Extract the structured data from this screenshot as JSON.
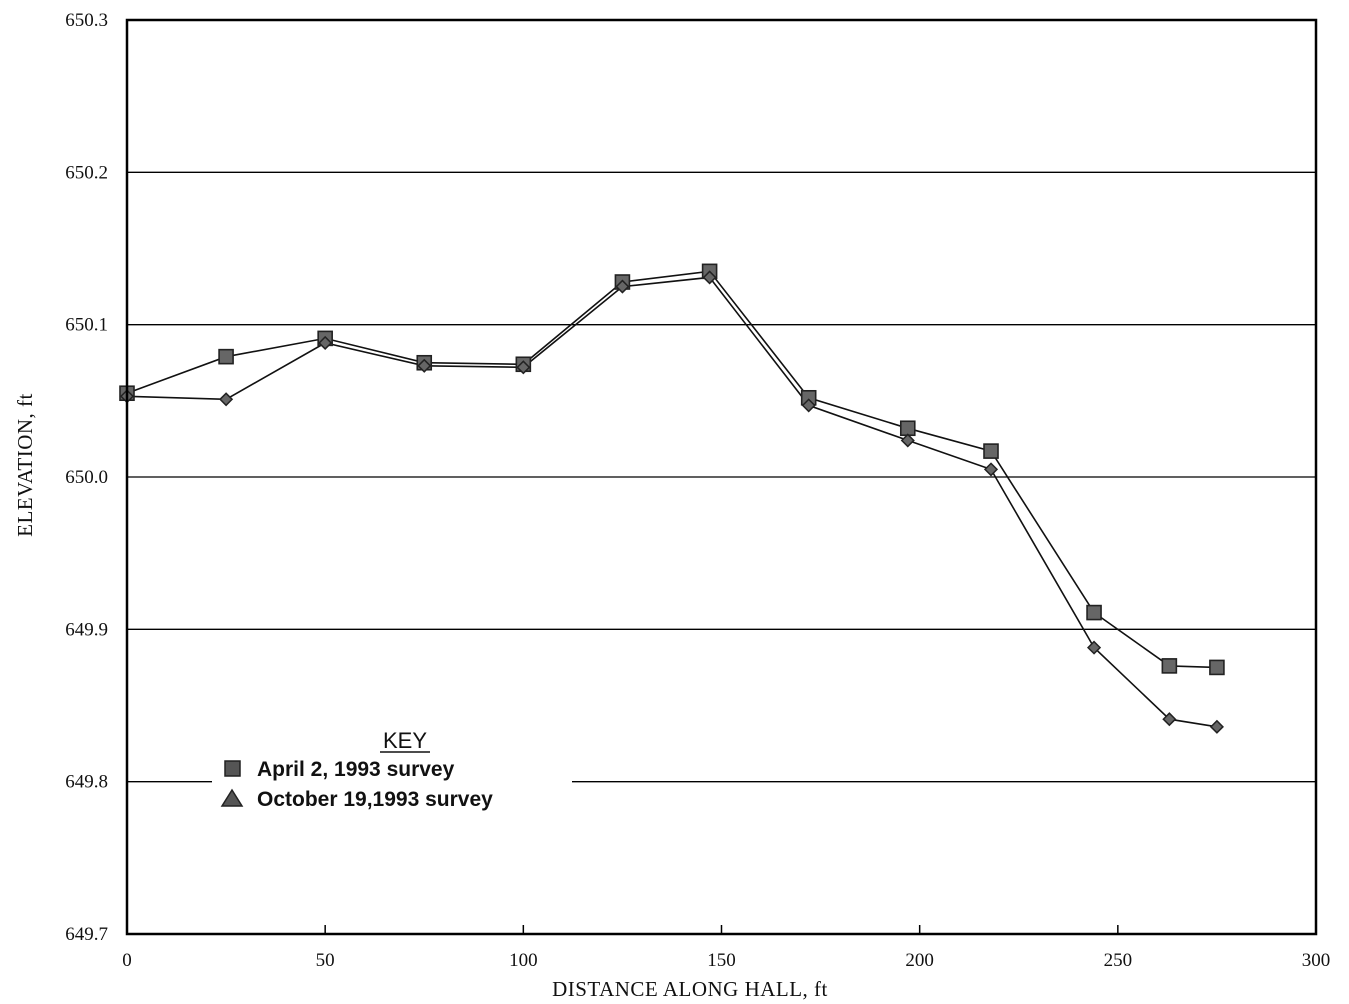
{
  "chart_data": {
    "type": "line",
    "xlabel": "DISTANCE ALONG HALL, ft",
    "ylabel": "ELEVATION, ft",
    "xlim": [
      0,
      300
    ],
    "ylim": [
      649.7,
      650.3
    ],
    "x_ticks": [
      "0",
      "50",
      "100",
      "150",
      "200",
      "250",
      "300"
    ],
    "y_ticks": [
      "650.3",
      "650.2",
      "650.1",
      "650.0",
      "649.9",
      "649.8",
      "649.7"
    ],
    "grid": "horizontal",
    "legend": {
      "title": "KEY",
      "placement": "lower-left",
      "entries": [
        "April 2, 1993 survey",
        "October 19,1993 survey"
      ]
    },
    "series": [
      {
        "name": "April 2, 1993 survey",
        "marker": "square",
        "x": [
          0,
          25,
          50,
          75,
          100,
          125,
          147,
          172,
          197,
          218,
          244,
          263,
          275
        ],
        "y": [
          650.055,
          650.079,
          650.091,
          650.075,
          650.074,
          650.128,
          650.135,
          650.052,
          650.032,
          650.017,
          649.911,
          649.876,
          649.875
        ]
      },
      {
        "name": "October 19,1993 survey",
        "marker": "diamond",
        "x": [
          0,
          25,
          50,
          75,
          100,
          125,
          147,
          172,
          197,
          218,
          244,
          263,
          275
        ],
        "y": [
          650.053,
          650.051,
          650.088,
          650.073,
          650.072,
          650.125,
          650.131,
          650.047,
          650.024,
          650.005,
          649.888,
          649.841,
          649.836
        ]
      }
    ]
  }
}
